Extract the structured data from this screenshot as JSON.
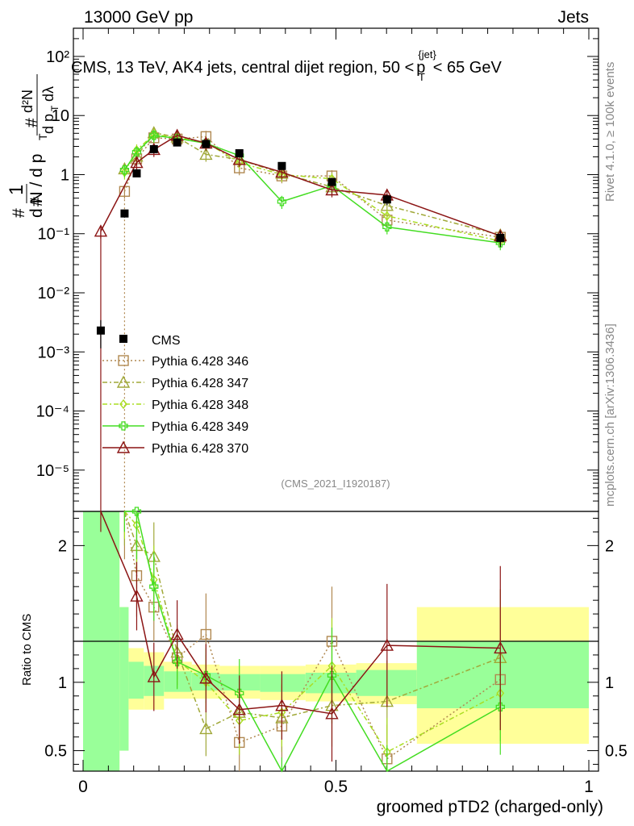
{
  "header": {
    "left": "13000 GeV pp",
    "right": "Jets"
  },
  "side_labels": {
    "rivet": "Rivet 4.1.0, ≥ 100k events",
    "mcplots": "mcplots.cern.ch [arXiv:1306.3436]"
  },
  "chart_data": {
    "type": "line",
    "title": "CMS, 13 TeV, AK4 jets, central dijet region, 50 < p_T^{jet} < 65 GeV",
    "title_parts": {
      "before": "CMS, 13 TeV, AK4 jets, central dijet region, 50 <",
      "p": "p",
      "sub": "T",
      "sup": "{jet}",
      "after": "< 65 GeV"
    },
    "analysis_tag": "(CMS_2021_I1920187)",
    "xlabel": "groomed pTD2 (charged-only)",
    "ylabel_main": {
      "num_hash": "#",
      "one": "1",
      "den_hash": "#",
      "dN": "d N / d p",
      "dN_sub": "T",
      "frac_num": "d²N",
      "frac_den": "d p",
      "frac_den_sub": "T",
      "lambda": "dλ"
    },
    "ylabel_ratio": "Ratio to CMS",
    "xlim": [
      0,
      1
    ],
    "ylim_main": [
      2e-06,
      300
    ],
    "ylim_ratio": [
      0.35,
      2.25
    ],
    "x_ticks": [
      {
        "v": 0,
        "label": "0"
      },
      {
        "v": 0.5,
        "label": "0.5"
      },
      {
        "v": 1,
        "label": "1"
      }
    ],
    "main_tick_labels": [
      {
        "v": 100,
        "label": "10²"
      },
      {
        "v": 10,
        "label": "10"
      },
      {
        "v": 1,
        "label": "1"
      },
      {
        "v": 0.1,
        "label": "10⁻¹"
      },
      {
        "v": 0.01,
        "label": "10⁻²"
      },
      {
        "v": 0.001,
        "label": "10⁻³"
      },
      {
        "v": 0.0001,
        "label": "10⁻⁴"
      },
      {
        "v": 1e-05,
        "label": "10⁻⁵"
      }
    ],
    "ratio_tick_labels": [
      {
        "v": 2,
        "label": "2"
      },
      {
        "v": 1,
        "label": "1"
      },
      {
        "v": 0.5,
        "label": "0.5"
      }
    ],
    "data": {
      "name": "CMS",
      "x": [
        0.035,
        0.082,
        0.106,
        0.14,
        0.186,
        0.243,
        0.309,
        0.393,
        0.492,
        0.601,
        0.825
      ],
      "y": [
        0.0023,
        0.22,
        1.05,
        2.7,
        3.5,
        3.3,
        2.3,
        1.4,
        0.75,
        0.38,
        0.085
      ],
      "yerr_rel": [
        0.5,
        0.15,
        0.1,
        0.08,
        0.07,
        0.07,
        0.08,
        0.09,
        0.12,
        0.2,
        0.3
      ]
    },
    "ratio_bands": [
      {
        "x0": 0.0,
        "x1": 0.072,
        "stat": [
          0.35,
          2.25
        ],
        "tot": [
          0.35,
          2.25
        ]
      },
      {
        "x0": 0.072,
        "x1": 0.09,
        "stat": [
          0.5,
          1.55
        ],
        "tot": [
          0.5,
          1.55
        ]
      },
      {
        "x0": 0.09,
        "x1": 0.12,
        "stat": [
          0.88,
          1.15
        ],
        "tot": [
          0.8,
          1.25
        ]
      },
      {
        "x0": 0.12,
        "x1": 0.16,
        "stat": [
          0.9,
          1.12
        ],
        "tot": [
          0.8,
          1.22
        ]
      },
      {
        "x0": 0.16,
        "x1": 0.215,
        "stat": [
          0.93,
          1.08
        ],
        "tot": [
          0.88,
          1.15
        ]
      },
      {
        "x0": 0.215,
        "x1": 0.27,
        "stat": [
          0.94,
          1.07
        ],
        "tot": [
          0.88,
          1.13
        ]
      },
      {
        "x0": 0.27,
        "x1": 0.35,
        "stat": [
          0.94,
          1.06
        ],
        "tot": [
          0.88,
          1.12
        ]
      },
      {
        "x0": 0.35,
        "x1": 0.44,
        "stat": [
          0.93,
          1.06
        ],
        "tot": [
          0.87,
          1.12
        ]
      },
      {
        "x0": 0.44,
        "x1": 0.54,
        "stat": [
          0.92,
          1.07
        ],
        "tot": [
          0.86,
          1.13
        ]
      },
      {
        "x0": 0.54,
        "x1": 0.66,
        "stat": [
          0.9,
          1.09
        ],
        "tot": [
          0.84,
          1.14
        ]
      },
      {
        "x0": 0.66,
        "x1": 1.0,
        "stat": [
          0.81,
          1.3
        ],
        "tot": [
          0.55,
          1.55
        ]
      }
    ],
    "series": [
      {
        "name": "Pythia 6.428 346",
        "color": "#b08850",
        "marker": "square-open",
        "dash": "2,3",
        "x": [
          0.082,
          0.106,
          0.14,
          0.186,
          0.243,
          0.309,
          0.393,
          0.492,
          0.601,
          0.825
        ],
        "y": [
          0.52,
          1.85,
          4.2,
          4.0,
          4.4,
          1.3,
          0.95,
          0.95,
          0.17,
          0.087
        ],
        "ratio": [
          2.3,
          1.78,
          1.55,
          1.18,
          1.35,
          0.56,
          0.68,
          1.3,
          0.44,
          1.02
        ],
        "ratio_err": [
          0.4,
          0.3,
          0.25,
          0.2,
          0.3,
          0.3,
          0.3,
          0.4,
          0.25,
          0.3
        ]
      },
      {
        "name": "Pythia 6.428 347",
        "color": "#a0a838",
        "marker": "triangle-open",
        "dash": "6,3,2,3",
        "x": [
          0.082,
          0.106,
          0.14,
          0.186,
          0.243,
          0.309,
          0.393,
          0.492,
          0.601,
          0.825
        ],
        "y": [
          1.25,
          2.05,
          5.1,
          4.3,
          2.2,
          1.8,
          1.05,
          0.62,
          0.3,
          0.095
        ],
        "ratio": [
          2.4,
          2.0,
          1.92,
          1.22,
          0.66,
          0.78,
          0.74,
          0.83,
          0.86,
          1.18
        ],
        "ratio_err": [
          0.4,
          0.35,
          0.25,
          0.2,
          0.2,
          0.25,
          0.25,
          0.3,
          0.3,
          0.5
        ]
      },
      {
        "name": "Pythia 6.428 348",
        "color": "#aadd22",
        "marker": "diamond-open",
        "dash": "6,3,2,3",
        "x": [
          0.082,
          0.106,
          0.14,
          0.186,
          0.243,
          0.309,
          0.393,
          0.492,
          0.601,
          0.825
        ],
        "y": [
          1.1,
          2.6,
          4.8,
          4.2,
          3.5,
          1.6,
          1.0,
          0.85,
          0.2,
          0.075
        ],
        "ratio": [
          2.45,
          2.15,
          1.75,
          1.16,
          1.0,
          0.72,
          0.78,
          1.12,
          0.49,
          0.92
        ],
        "ratio_err": [
          0.4,
          0.35,
          0.25,
          0.2,
          0.2,
          0.25,
          0.25,
          0.35,
          0.25,
          0.35
        ]
      },
      {
        "name": "Pythia 6.428 349",
        "color": "#44dd22",
        "marker": "cross-open",
        "dash": "",
        "x": [
          0.082,
          0.106,
          0.14,
          0.186,
          0.243,
          0.309,
          0.393,
          0.492,
          0.601,
          0.825
        ],
        "y": [
          1.2,
          2.4,
          4.6,
          4.1,
          3.4,
          2.1,
          0.35,
          0.65,
          0.13,
          0.07
        ],
        "ratio": [
          2.5,
          2.25,
          1.7,
          1.15,
          1.05,
          0.92,
          0.25,
          1.05,
          0.34,
          0.82
        ],
        "ratio_err": [
          0.4,
          0.35,
          0.25,
          0.2,
          0.2,
          0.25,
          0.2,
          0.35,
          0.2,
          0.35
        ]
      },
      {
        "name": "Pythia 6.428 370",
        "color": "#8b1414",
        "marker": "triangle-open",
        "dash": "",
        "x": [
          0.035,
          0.106,
          0.14,
          0.186,
          0.243,
          0.309,
          0.393,
          0.492,
          0.601,
          0.825
        ],
        "y": [
          0.11,
          1.6,
          2.65,
          4.6,
          3.4,
          1.8,
          1.1,
          0.55,
          0.45,
          0.092
        ],
        "ratio": [
          2.6,
          1.63,
          1.04,
          1.35,
          1.03,
          0.8,
          0.83,
          0.77,
          1.27,
          1.25
        ],
        "ratio_err": [
          0.5,
          0.25,
          0.25,
          0.25,
          0.25,
          0.25,
          0.25,
          0.35,
          0.45,
          0.6
        ]
      }
    ]
  }
}
